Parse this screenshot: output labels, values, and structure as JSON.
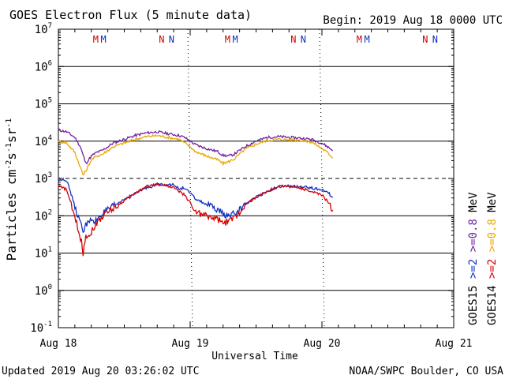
{
  "chart_data": {
    "type": "line",
    "title": "GOES Electron Flux (5 minute data)",
    "begin_label": "Begin: 2019 Aug 18 0000 UTC",
    "xlabel": "Universal Time",
    "ylabel_prefix": "Particles cm",
    "ylabel_exp1": "-2",
    "ylabel_mid1": "s",
    "ylabel_exp2": "-1",
    "ylabel_mid2": "sr",
    "ylabel_exp3": "-1",
    "footer_left": "Updated 2019 Aug 20 03:26:02 UTC",
    "footer_right": "NOAA/SWPC Boulder, CO USA",
    "x_unit": "hours since 2019 Aug 18 0000 UTC",
    "xlim": [
      0,
      72
    ],
    "x_ticks": [
      {
        "x": 0,
        "label": "Aug 18"
      },
      {
        "x": 24,
        "label": "Aug 19"
      },
      {
        "x": 48,
        "label": "Aug 20"
      },
      {
        "x": 72,
        "label": "Aug 21"
      }
    ],
    "y_scale": "log",
    "ylim_log10": [
      -1,
      7
    ],
    "y_ticks": [
      {
        "exp": -1,
        "base": "10",
        "sup": "-1"
      },
      {
        "exp": 0,
        "base": "10",
        "sup": "0"
      },
      {
        "exp": 1,
        "base": "10",
        "sup": "1"
      },
      {
        "exp": 2,
        "base": "10",
        "sup": "2"
      },
      {
        "exp": 3,
        "base": "10",
        "sup": "3"
      },
      {
        "exp": 4,
        "base": "10",
        "sup": "4"
      },
      {
        "exp": 5,
        "base": "10",
        "sup": "5"
      },
      {
        "exp": 6,
        "base": "10",
        "sup": "6"
      },
      {
        "exp": 7,
        "base": "10",
        "sup": "7"
      }
    ],
    "alert_threshold_log10": 3,
    "markers": [
      {
        "x": 6.8,
        "text": "M",
        "color": "#d40000"
      },
      {
        "x": 8.2,
        "text": "M",
        "color": "#1030c0"
      },
      {
        "x": 18.8,
        "text": "N",
        "color": "#d40000"
      },
      {
        "x": 20.6,
        "text": "N",
        "color": "#1030c0"
      },
      {
        "x": 30.8,
        "text": "M",
        "color": "#d40000"
      },
      {
        "x": 32.2,
        "text": "M",
        "color": "#1030c0"
      },
      {
        "x": 42.8,
        "text": "N",
        "color": "#d40000"
      },
      {
        "x": 44.6,
        "text": "N",
        "color": "#1030c0"
      },
      {
        "x": 54.8,
        "text": "M",
        "color": "#d40000"
      },
      {
        "x": 56.2,
        "text": "M",
        "color": "#1030c0"
      },
      {
        "x": 66.8,
        "text": "N",
        "color": "#d40000"
      },
      {
        "x": 68.6,
        "text": "N",
        "color": "#1030c0"
      }
    ],
    "legend": {
      "col1": [
        {
          "text": "GOES15",
          "color": "#000000"
        },
        {
          "text": ">=2",
          "color": "#1030c0"
        },
        {
          "text": ">=0.8",
          "color": "#7020a0"
        },
        {
          "text": "MeV",
          "color": "#000000"
        }
      ],
      "col2": [
        {
          "text": "GOES14",
          "color": "#000000"
        },
        {
          "text": ">=2",
          "color": "#d40000"
        },
        {
          "text": ">=0.8",
          "color": "#e8a800"
        },
        {
          "text": "MeV",
          "color": "#000000"
        }
      ]
    },
    "series": [
      {
        "name": "GOES15 >=0.8 MeV",
        "color": "#7020a0",
        "x": [
          0,
          1.5,
          3,
          4,
          5,
          5.5,
          6,
          7,
          8,
          9,
          10,
          12,
          14,
          16,
          18,
          20,
          22,
          23,
          24,
          25,
          27,
          29,
          30,
          31,
          32,
          33,
          34,
          36,
          38,
          40,
          42,
          44,
          46,
          47,
          48,
          49,
          50
        ],
        "y": [
          4.3,
          4.25,
          4.1,
          3.85,
          3.4,
          3.5,
          3.6,
          3.7,
          3.75,
          3.85,
          3.95,
          4.05,
          4.15,
          4.22,
          4.25,
          4.2,
          4.15,
          4.1,
          4.0,
          3.9,
          3.8,
          3.72,
          3.62,
          3.6,
          3.65,
          3.75,
          3.85,
          4.0,
          4.1,
          4.12,
          4.1,
          4.08,
          4.05,
          4.0,
          3.95,
          3.85,
          3.75
        ]
      },
      {
        "name": "GOES14 >=0.8 MeV",
        "color": "#e8a800",
        "x": [
          0,
          1.5,
          3,
          4,
          4.5,
          5,
          5.5,
          6,
          7,
          8,
          9,
          10,
          12,
          14,
          16,
          18,
          20,
          22,
          23,
          24,
          25,
          27,
          29,
          30,
          31,
          32,
          33,
          34,
          36,
          38,
          40,
          42,
          44,
          46,
          47,
          48,
          49,
          50
        ],
        "y": [
          4.0,
          3.95,
          3.7,
          3.3,
          3.1,
          3.2,
          3.35,
          3.5,
          3.6,
          3.65,
          3.75,
          3.85,
          3.95,
          4.05,
          4.12,
          4.15,
          4.1,
          4.05,
          3.95,
          3.85,
          3.72,
          3.6,
          3.5,
          3.4,
          3.45,
          3.52,
          3.65,
          3.78,
          3.92,
          4.02,
          4.05,
          4.04,
          4.03,
          3.98,
          3.9,
          3.8,
          3.7,
          3.55
        ]
      },
      {
        "name": "GOES15 >=2 MeV",
        "color": "#1030c0",
        "x": [
          0,
          1.5,
          2.5,
          3.5,
          4.5,
          5.5,
          6.5,
          7.5,
          8.5,
          10,
          12,
          14,
          16,
          18,
          20,
          21,
          22,
          23,
          24,
          25,
          27,
          29,
          30,
          31,
          32,
          33,
          34,
          36,
          38,
          40,
          42,
          44,
          46,
          47,
          48,
          49,
          50
        ],
        "y": [
          3.0,
          2.95,
          2.5,
          2.0,
          1.6,
          1.9,
          1.8,
          2.0,
          2.1,
          2.25,
          2.45,
          2.6,
          2.75,
          2.83,
          2.85,
          2.82,
          2.72,
          2.75,
          2.6,
          2.45,
          2.3,
          2.15,
          2.05,
          2.0,
          2.05,
          2.15,
          2.3,
          2.5,
          2.65,
          2.78,
          2.8,
          2.77,
          2.75,
          2.72,
          2.7,
          2.63,
          2.5
        ]
      },
      {
        "name": "GOES14 >=2 MeV",
        "color": "#d40000",
        "x": [
          0,
          1.5,
          2.5,
          3.5,
          4.2,
          4.5,
          5,
          5.5,
          6.5,
          7.5,
          8.5,
          10,
          12,
          14,
          16,
          18,
          20,
          21,
          22,
          23,
          24,
          25,
          27,
          29,
          30,
          31,
          32,
          33,
          34,
          36,
          38,
          40,
          42,
          44,
          46,
          47,
          48,
          49,
          50
        ],
        "y": [
          2.8,
          2.7,
          2.2,
          1.7,
          1.3,
          1.0,
          1.5,
          1.45,
          1.7,
          1.9,
          2.05,
          2.2,
          2.4,
          2.6,
          2.78,
          2.85,
          2.8,
          2.75,
          2.65,
          2.55,
          2.35,
          2.1,
          2.0,
          1.9,
          1.8,
          1.85,
          1.95,
          2.1,
          2.3,
          2.5,
          2.65,
          2.78,
          2.78,
          2.75,
          2.65,
          2.6,
          2.55,
          2.4,
          2.15
        ]
      }
    ]
  }
}
